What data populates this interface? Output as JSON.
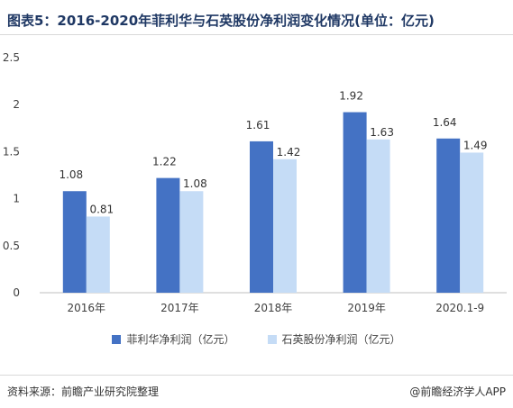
{
  "title": "图表5：2016-2020年菲利华与石英股份净利润变化情况(单位：亿元)",
  "source": "资料来源：前瞻产业研究院整理",
  "brand": "@前瞻经济学人APP",
  "colors": {
    "series_1": "#4472c4",
    "series_2": "#c5dcf6",
    "title": "#1f3864"
  },
  "chart_data": {
    "type": "bar",
    "title": "图表5：2016-2020年菲利华与石英股份净利润变化情况(单位：亿元)",
    "categories": [
      "2016年",
      "2017年",
      "2018年",
      "2019年",
      "2020.1-9"
    ],
    "series": [
      {
        "name": "菲利华净利润（亿元）",
        "values": [
          1.08,
          1.22,
          1.61,
          1.92,
          1.64
        ],
        "labels": [
          "1.08",
          "1.22",
          "1.61",
          "1.92",
          "1.64"
        ]
      },
      {
        "name": "石英股份净利润（亿元）",
        "values": [
          0.81,
          1.08,
          1.42,
          1.63,
          1.49
        ],
        "labels": [
          "0.81",
          "1.08",
          "1.42",
          "1.63",
          "1.49"
        ]
      }
    ],
    "yticks": [
      "0",
      "0.5",
      "1",
      "1.5",
      "2",
      "2.5"
    ],
    "ylim": [
      0,
      2.5
    ],
    "xlabel": "",
    "ylabel": "",
    "grid": false,
    "legend_position": "bottom"
  }
}
